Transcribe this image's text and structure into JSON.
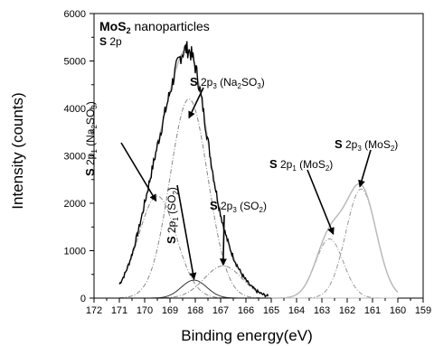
{
  "chart_data": {
    "type": "line",
    "title": "MoS₂ nanoparticles",
    "subtitle": "S 2p",
    "xlabel": "Binding energy(eV)",
    "ylabel": "Intensity (counts)",
    "xlim": [
      172,
      159
    ],
    "ylim": [
      0,
      6000
    ],
    "x_reversed": true,
    "grid": false,
    "xticks": [
      172,
      171,
      170,
      169,
      168,
      167,
      166,
      165,
      164,
      163,
      162,
      161,
      160,
      159
    ],
    "yticks": [
      0,
      1000,
      2000,
      3000,
      4000,
      5000,
      6000
    ],
    "series": [
      {
        "components": "S 2p₁ (Na₂SO₃)",
        "center": 169.5,
        "height": 2150,
        "width": 0.75,
        "style": "dash-dot",
        "color": "#888888"
      },
      {
        "components": "S 2p₃ (Na₂SO₃)",
        "center": 168.25,
        "height": 4200,
        "width": 0.75,
        "style": "dash-dot",
        "color": "#888888"
      },
      {
        "components": "S 2p₁ (SO₂)",
        "center": 168.05,
        "height": 380,
        "width": 0.5,
        "style": "solid",
        "color": "#333333"
      },
      {
        "components": "S 2p₃ (SO₂)",
        "center": 166.9,
        "height": 680,
        "width": 0.75,
        "style": "dash-dot",
        "color": "#888888"
      },
      {
        "components": "S 2p₁(MoS₂)",
        "center": 162.7,
        "height": 1250,
        "width": 0.55,
        "style": "dash-dot",
        "color": "#999999"
      },
      {
        "components": "S 2p₃(MoS₂)",
        "center": 161.45,
        "height": 2300,
        "width": 0.6,
        "style": "dash-dot",
        "color": "#999999"
      }
    ],
    "envelopes": [
      {
        "range": [
          171,
          165.1
        ],
        "style": "solid",
        "color": "#bbbbbb"
      },
      {
        "range": [
          165,
          160
        ],
        "style": "solid",
        "color": "#bbbbbb"
      }
    ],
    "raw": {
      "range": [
        171,
        165.1
      ],
      "style": "noisy-solid",
      "color": "#000000"
    },
    "annotations": [
      {
        "text_b": "S",
        "text": "2p",
        "sub": "3",
        "rest": "(Na",
        "sub2": "2",
        "rest2": "SO",
        "sub3": "3",
        "rest3": ")",
        "points_to": [
          168.25,
          3800
        ]
      },
      {
        "text_b": "S",
        "text": "2p",
        "sub": "1",
        "rest": "(Na",
        "sub2": "2",
        "rest2": "SO",
        "sub3": "3",
        "rest3": ")",
        "orientation": "vertical",
        "points_to": [
          169.55,
          2050
        ]
      },
      {
        "text_b": "S",
        "text": "2p",
        "sub": "1",
        "rest": "(SO",
        "sub2": "2",
        "rest2": ")",
        "orientation": "vertical",
        "points_to": [
          168.05,
          400
        ]
      },
      {
        "text_b": "S",
        "text": "2p",
        "sub": "3",
        "rest": "(SO",
        "sub2": "2",
        "rest2": ")",
        "points_to": [
          166.9,
          700
        ]
      },
      {
        "text_b": "S",
        "text": "2p",
        "sub": "1",
        "rest": "(MoS",
        "sub2": "2",
        "rest2": ")",
        "points_to": [
          162.55,
          1350
        ]
      },
      {
        "text_b": "S",
        "text": "2p",
        "sub": "3",
        "rest": "(MoS",
        "sub2": "2",
        "rest2": ")",
        "points_to": [
          161.5,
          2350
        ]
      }
    ]
  }
}
